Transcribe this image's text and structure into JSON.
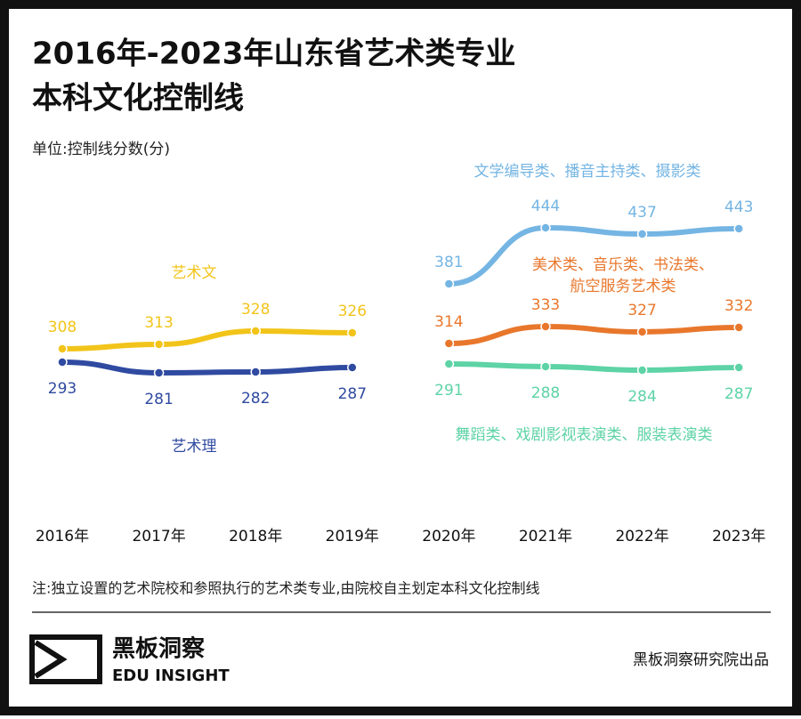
{
  "title_lines": [
    "2016年-2023年山东省艺术类专业",
    "本科文化控制线"
  ],
  "unit": "单位:控制线分数(分)",
  "note": "注:独立设置的艺术院校和参照执行的艺术类专业,由院校自主划定本科文化控制线",
  "brand": {
    "name": "黑板洞察",
    "sub": "EDU INSIGHT",
    "credit": "黑板洞察研究院出品"
  },
  "chart_data": {
    "type": "line",
    "categories": [
      "2016年",
      "2017年",
      "2018年",
      "2019年",
      "2020年",
      "2021年",
      "2022年",
      "2023年"
    ],
    "ylim": [
      270,
      460
    ],
    "series": [
      {
        "name": "艺术文",
        "color": "#f2c41a",
        "values": [
          308,
          313,
          328,
          326,
          null,
          null,
          null,
          null
        ]
      },
      {
        "name": "艺术理",
        "color": "#2f4aa0",
        "values": [
          293,
          281,
          282,
          287,
          null,
          null,
          null,
          null
        ]
      },
      {
        "name": "文学编导类、播音主持类、摄影类",
        "color": "#74b5e3",
        "values": [
          null,
          null,
          null,
          null,
          381,
          444,
          437,
          443
        ]
      },
      {
        "name": "美术类、音乐类、书法类、航空服务艺术类",
        "color": "#e8772c",
        "values": [
          null,
          null,
          null,
          null,
          314,
          333,
          327,
          332
        ]
      },
      {
        "name": "舞蹈类、戏剧影视表演类、服装表演类",
        "color": "#5dd3a6",
        "values": [
          null,
          null,
          null,
          null,
          291,
          288,
          284,
          287
        ]
      }
    ]
  }
}
